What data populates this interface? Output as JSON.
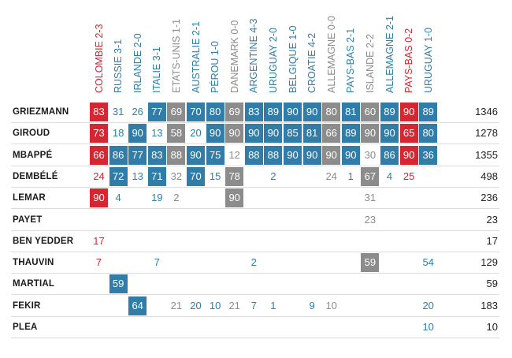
{
  "colors": {
    "defeat": "#d62631",
    "win": "#2f7da8",
    "draw": "#8c8c8c",
    "white": "#ffffff",
    "text": "#1a1a1a"
  },
  "chart_data": {
    "type": "table",
    "title": "",
    "matches": [
      {
        "label": "COLOMBIE 2-3",
        "result": "defeat"
      },
      {
        "label": "RUSSIE 3-1",
        "result": "win"
      },
      {
        "label": "IRLANDE 2-0",
        "result": "win"
      },
      {
        "label": "ITALIE 3-1",
        "result": "win"
      },
      {
        "label": "ETATS-UNIS 1-1",
        "result": "draw"
      },
      {
        "label": "AUSTRALIE 2-1",
        "result": "win"
      },
      {
        "label": "PÉROU 1-0",
        "result": "win"
      },
      {
        "label": "DANEMARK 0-0",
        "result": "draw"
      },
      {
        "label": "ARGENTINE 4-3",
        "result": "win"
      },
      {
        "label": "URUGUAY 2-0",
        "result": "win"
      },
      {
        "label": "BELGIQUE 1-0",
        "result": "win"
      },
      {
        "label": "CROATIE 4-2",
        "result": "win"
      },
      {
        "label": "ALLEMAGNE 0-0",
        "result": "draw"
      },
      {
        "label": "PAYS-BAS 2-1",
        "result": "win"
      },
      {
        "label": "ISLANDE 2-2",
        "result": "draw"
      },
      {
        "label": "ALLEMAGNE 2-1",
        "result": "win"
      },
      {
        "label": "PAYS-BAS 0-2",
        "result": "defeat"
      },
      {
        "label": "URUGUAY 1-0",
        "result": "win"
      }
    ],
    "players": [
      {
        "name": "GRIEZMANN",
        "total": "1346",
        "minutes": [
          83,
          31,
          26,
          77,
          69,
          70,
          80,
          69,
          83,
          89,
          90,
          90,
          80,
          81,
          60,
          89,
          90,
          89
        ],
        "starter": [
          1,
          0,
          0,
          1,
          1,
          1,
          1,
          1,
          1,
          1,
          1,
          1,
          1,
          1,
          1,
          1,
          1,
          1
        ]
      },
      {
        "name": "GIROUD",
        "total": "1278",
        "minutes": [
          73,
          18,
          90,
          13,
          58,
          20,
          90,
          90,
          90,
          90,
          85,
          81,
          66,
          89,
          90,
          90,
          65,
          80
        ],
        "starter": [
          1,
          0,
          1,
          0,
          1,
          0,
          1,
          1,
          1,
          1,
          1,
          1,
          1,
          1,
          1,
          1,
          1,
          1
        ]
      },
      {
        "name": "MBAPPÉ",
        "total": "1355",
        "minutes": [
          66,
          86,
          77,
          83,
          88,
          90,
          75,
          12,
          88,
          88,
          90,
          90,
          90,
          90,
          30,
          86,
          90,
          36
        ],
        "starter": [
          1,
          1,
          1,
          1,
          1,
          1,
          1,
          0,
          1,
          1,
          1,
          1,
          1,
          1,
          0,
          1,
          1,
          1
        ]
      },
      {
        "name": "DEMBÉLÉ",
        "total": "498",
        "minutes": [
          24,
          72,
          13,
          71,
          32,
          70,
          15,
          78,
          null,
          2,
          null,
          null,
          24,
          1,
          67,
          4,
          25,
          null
        ],
        "starter": [
          0,
          1,
          0,
          1,
          0,
          1,
          0,
          1,
          0,
          0,
          0,
          0,
          0,
          0,
          1,
          0,
          0,
          0
        ]
      },
      {
        "name": "LEMAR",
        "total": "236",
        "minutes": [
          90,
          4,
          null,
          19,
          2,
          null,
          null,
          90,
          null,
          null,
          null,
          null,
          null,
          null,
          31,
          null,
          null,
          null
        ],
        "starter": [
          1,
          0,
          0,
          0,
          0,
          0,
          0,
          1,
          0,
          0,
          0,
          0,
          0,
          0,
          0,
          0,
          0,
          0
        ]
      },
      {
        "name": "PAYET",
        "total": "23",
        "minutes": [
          null,
          null,
          null,
          null,
          null,
          null,
          null,
          null,
          null,
          null,
          null,
          null,
          null,
          null,
          23,
          null,
          null,
          null
        ],
        "starter": [
          0,
          0,
          0,
          0,
          0,
          0,
          0,
          0,
          0,
          0,
          0,
          0,
          0,
          0,
          0,
          0,
          0,
          0
        ]
      },
      {
        "name": "BEN YEDDER",
        "total": "17",
        "minutes": [
          17,
          null,
          null,
          null,
          null,
          null,
          null,
          null,
          null,
          null,
          null,
          null,
          null,
          null,
          null,
          null,
          null,
          null
        ],
        "starter": [
          0,
          0,
          0,
          0,
          0,
          0,
          0,
          0,
          0,
          0,
          0,
          0,
          0,
          0,
          0,
          0,
          0,
          0
        ]
      },
      {
        "name": "THAUVIN",
        "total": "129",
        "minutes": [
          7,
          null,
          null,
          7,
          null,
          null,
          null,
          null,
          2,
          null,
          null,
          null,
          null,
          null,
          59,
          null,
          null,
          54
        ],
        "starter": [
          0,
          0,
          0,
          0,
          0,
          0,
          0,
          0,
          0,
          0,
          0,
          0,
          0,
          0,
          1,
          0,
          0,
          0
        ]
      },
      {
        "name": "MARTIAL",
        "total": "59",
        "minutes": [
          null,
          59,
          null,
          null,
          null,
          null,
          null,
          null,
          null,
          null,
          null,
          null,
          null,
          null,
          null,
          null,
          null,
          null
        ],
        "starter": [
          0,
          1,
          0,
          0,
          0,
          0,
          0,
          0,
          0,
          0,
          0,
          0,
          0,
          0,
          0,
          0,
          0,
          0
        ]
      },
      {
        "name": "FEKIR",
        "total": "183",
        "minutes": [
          null,
          null,
          64,
          null,
          21,
          20,
          10,
          21,
          7,
          1,
          null,
          9,
          10,
          null,
          null,
          null,
          null,
          20
        ],
        "starter": [
          0,
          0,
          1,
          0,
          0,
          0,
          0,
          0,
          0,
          0,
          0,
          0,
          0,
          0,
          0,
          0,
          0,
          0
        ]
      },
      {
        "name": "PLEA",
        "total": "10",
        "minutes": [
          null,
          null,
          null,
          null,
          null,
          null,
          null,
          null,
          null,
          null,
          null,
          null,
          null,
          null,
          null,
          null,
          null,
          10
        ],
        "starter": [
          0,
          0,
          0,
          0,
          0,
          0,
          0,
          0,
          0,
          0,
          0,
          0,
          0,
          0,
          0,
          0,
          0,
          0
        ]
      }
    ]
  }
}
